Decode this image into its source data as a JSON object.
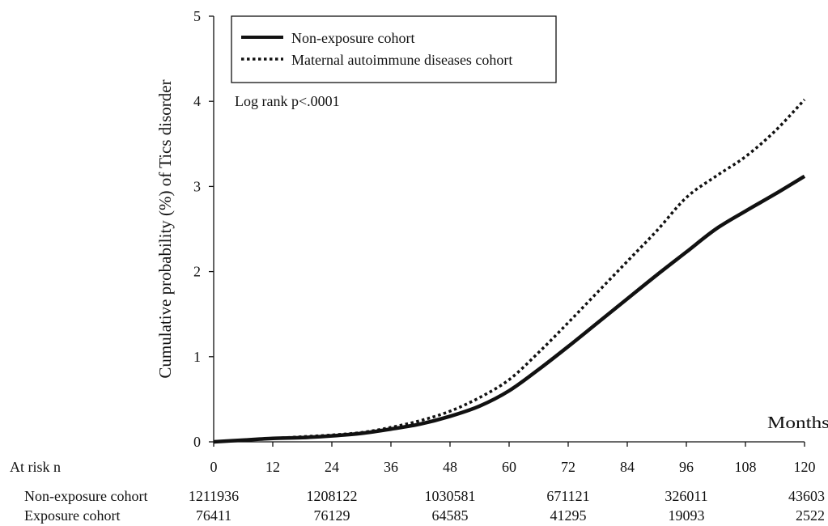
{
  "chart_data": {
    "type": "line",
    "title": "",
    "xlabel": "Months",
    "ylabel": "Cumulative probability (%) of Tics disorder",
    "xlim": [
      0,
      120
    ],
    "ylim": [
      0,
      5
    ],
    "x_ticks": [
      "0",
      "12",
      "24",
      "36",
      "48",
      "60",
      "72",
      "84",
      "96",
      "108",
      "120"
    ],
    "y_ticks": [
      "0",
      "1",
      "2",
      "3",
      "4",
      "5"
    ],
    "grid": false,
    "legend_position": "top-left",
    "annotation": "Log rank p<.0001",
    "series": [
      {
        "name": "Non-exposure cohort",
        "style": "solid",
        "x": [
          0,
          6,
          12,
          18,
          24,
          30,
          36,
          42,
          48,
          54,
          60,
          66,
          72,
          78,
          84,
          90,
          96,
          102,
          108,
          114,
          120
        ],
        "y": [
          0,
          0.02,
          0.04,
          0.05,
          0.07,
          0.1,
          0.15,
          0.21,
          0.3,
          0.42,
          0.6,
          0.85,
          1.12,
          1.4,
          1.68,
          1.96,
          2.23,
          2.5,
          2.71,
          2.91,
          3.12
        ]
      },
      {
        "name": "Maternal autoimmune diseases cohort",
        "style": "dotted",
        "x": [
          0,
          6,
          12,
          18,
          24,
          30,
          36,
          42,
          48,
          54,
          60,
          66,
          72,
          78,
          84,
          90,
          96,
          102,
          108,
          114,
          120
        ],
        "y": [
          0,
          0.02,
          0.04,
          0.06,
          0.08,
          0.11,
          0.17,
          0.25,
          0.36,
          0.52,
          0.73,
          1.05,
          1.4,
          1.76,
          2.12,
          2.48,
          2.87,
          3.12,
          3.35,
          3.65,
          4.02
        ]
      }
    ]
  },
  "at_risk": {
    "heading": "At risk n",
    "rows": [
      {
        "label": "Non-exposure cohort",
        "values": [
          "1211936",
          "1208122",
          "1030581",
          "671121",
          "326011",
          "43603"
        ]
      },
      {
        "label": "Exposure cohort",
        "values": [
          "76411",
          "76129",
          "64585",
          "41295",
          "19093",
          "2522"
        ]
      }
    ]
  }
}
